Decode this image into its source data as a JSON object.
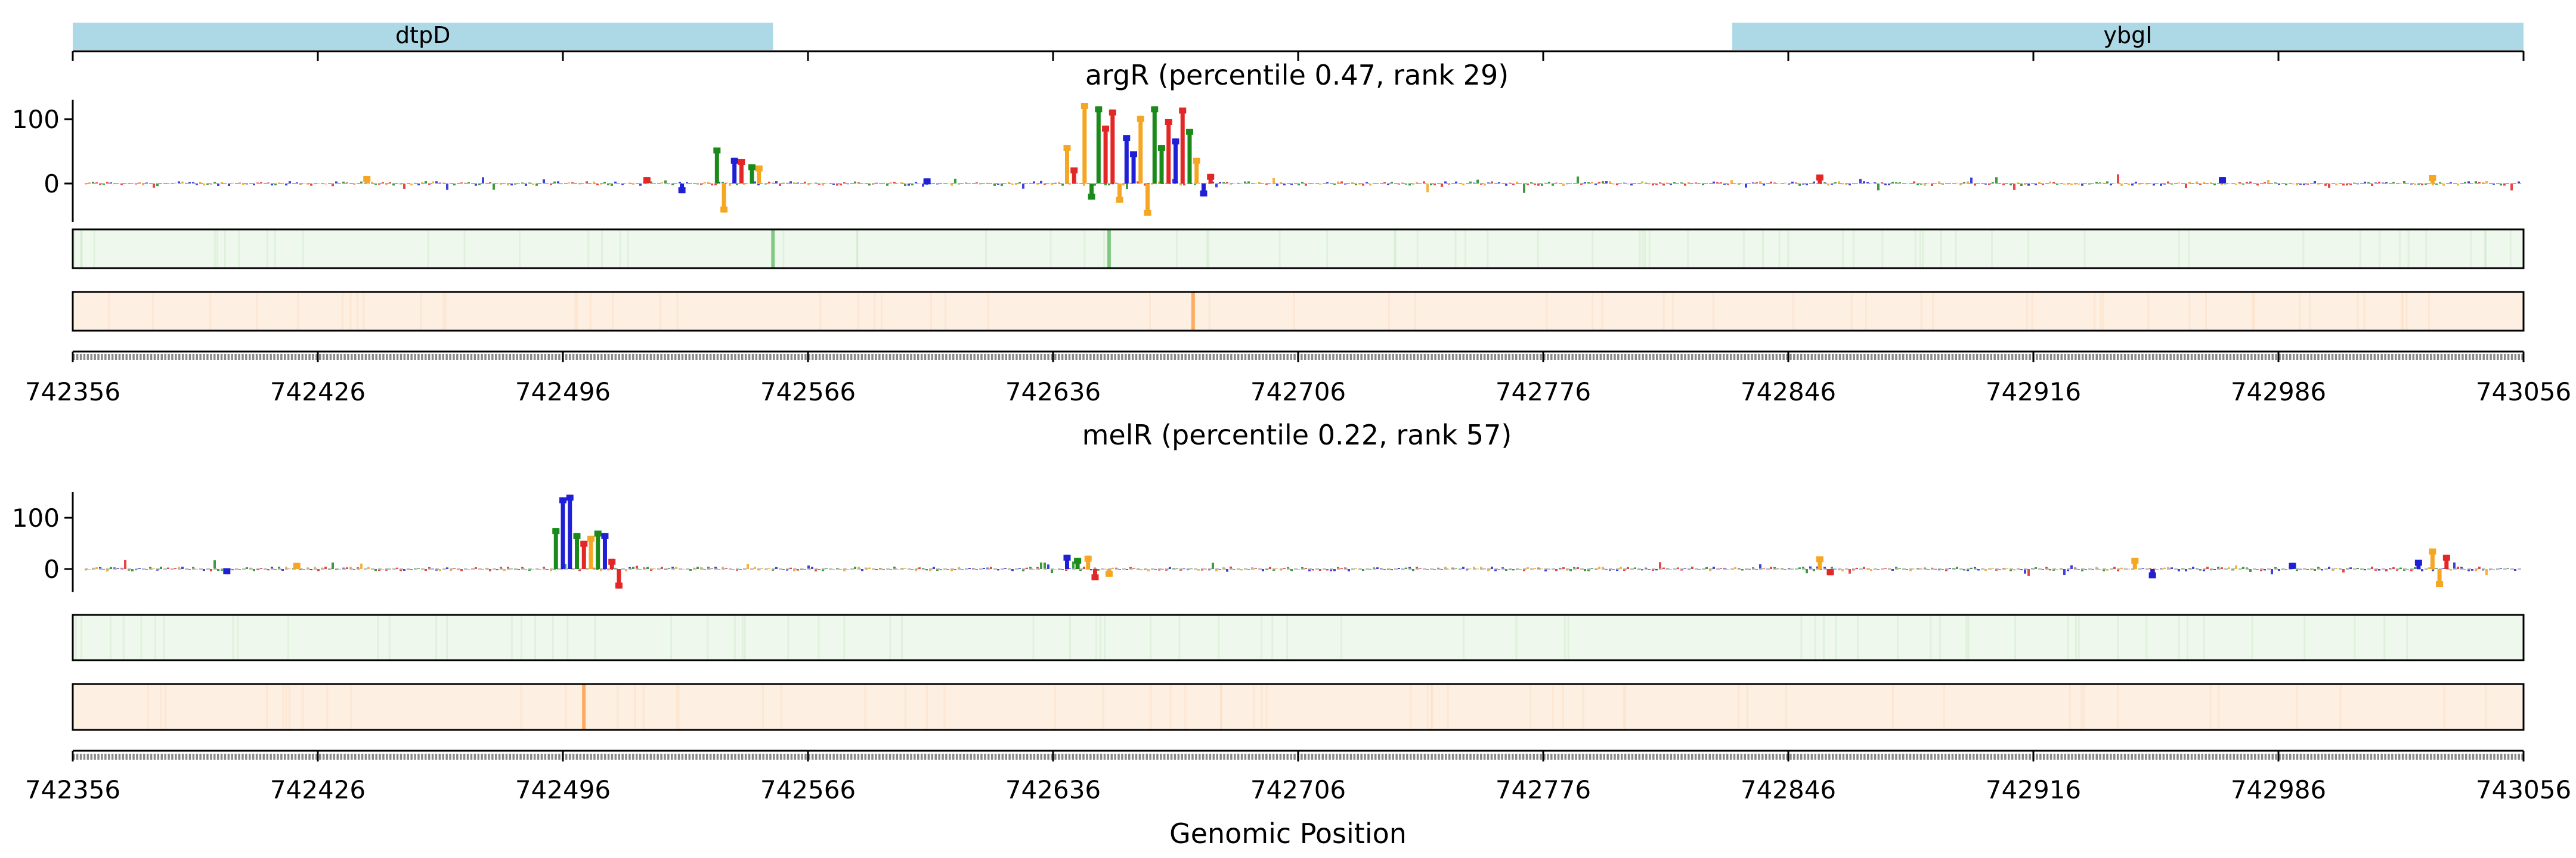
{
  "chart_data": {
    "type": "line",
    "xlabel": "Genomic Position",
    "x_range": [
      742356,
      743056
    ],
    "x_ticks": [
      742356,
      742426,
      742496,
      742566,
      742636,
      742706,
      742776,
      742846,
      742916,
      742986,
      743056
    ],
    "x_tick_labels": [
      "742356",
      "742426",
      "742496",
      "742566",
      "742636",
      "742706",
      "742776",
      "742846",
      "742916",
      "742986",
      "743056"
    ],
    "genes": [
      {
        "name": "dtpD",
        "start": 742356,
        "end": 742556
      },
      {
        "name": "ybgI",
        "start": 742830,
        "end": 743056
      }
    ],
    "base_colors": {
      "A": "#1a8a1a",
      "C": "#1f1fd6",
      "G": "#f5a623",
      "T": "#e32626"
    },
    "track_colors": {
      "conservation": "#2ca02c",
      "coverage": "#ff7f0e",
      "gene": "#add8e6"
    },
    "panels": [
      {
        "title": "argR (percentile 0.47, rank 29)",
        "ylim": [
          -60,
          130
        ],
        "y_ticks": [
          0,
          100
        ],
        "y_tick_labels": [
          "0",
          "100"
        ],
        "peaks": [
          {
            "x": 742540,
            "value": 56,
            "base": "A"
          },
          {
            "x": 742542,
            "value": -45,
            "base": "G"
          },
          {
            "x": 742545,
            "value": 40,
            "base": "C"
          },
          {
            "x": 742547,
            "value": 38,
            "base": "T"
          },
          {
            "x": 742550,
            "value": 30,
            "base": "A"
          },
          {
            "x": 742552,
            "value": 28,
            "base": "G"
          },
          {
            "x": 742530,
            "value": -15,
            "base": "C"
          },
          {
            "x": 742520,
            "value": 10,
            "base": "T"
          },
          {
            "x": 742640,
            "value": 60,
            "base": "G"
          },
          {
            "x": 742642,
            "value": 25,
            "base": "T"
          },
          {
            "x": 742645,
            "value": 125,
            "base": "G"
          },
          {
            "x": 742647,
            "value": -25,
            "base": "A"
          },
          {
            "x": 742649,
            "value": 120,
            "base": "A"
          },
          {
            "x": 742651,
            "value": 90,
            "base": "T"
          },
          {
            "x": 742653,
            "value": 115,
            "base": "T"
          },
          {
            "x": 742655,
            "value": -30,
            "base": "G"
          },
          {
            "x": 742657,
            "value": 75,
            "base": "C"
          },
          {
            "x": 742659,
            "value": 50,
            "base": "C"
          },
          {
            "x": 742661,
            "value": 105,
            "base": "G"
          },
          {
            "x": 742663,
            "value": -50,
            "base": "G"
          },
          {
            "x": 742665,
            "value": 120,
            "base": "A"
          },
          {
            "x": 742667,
            "value": 60,
            "base": "A"
          },
          {
            "x": 742669,
            "value": 100,
            "base": "T"
          },
          {
            "x": 742671,
            "value": 70,
            "base": "C"
          },
          {
            "x": 742673,
            "value": 118,
            "base": "T"
          },
          {
            "x": 742675,
            "value": 85,
            "base": "A"
          },
          {
            "x": 742677,
            "value": 40,
            "base": "G"
          },
          {
            "x": 742679,
            "value": -20,
            "base": "C"
          },
          {
            "x": 742681,
            "value": 15,
            "base": "T"
          },
          {
            "x": 742600,
            "value": 8,
            "base": "C"
          },
          {
            "x": 742440,
            "value": 12,
            "base": "G"
          },
          {
            "x": 742855,
            "value": 14,
            "base": "T"
          },
          {
            "x": 742970,
            "value": 10,
            "base": "C"
          },
          {
            "x": 743030,
            "value": 13,
            "base": "G"
          }
        ],
        "conservation_highlights": [
          742556,
          742652
        ],
        "coverage_highlights": [
          742676
        ]
      },
      {
        "title": "melR (percentile 0.22, rank 57)",
        "ylim": [
          -45,
          150
        ],
        "y_ticks": [
          0,
          100
        ],
        "y_tick_labels": [
          "0",
          "100"
        ],
        "peaks": [
          {
            "x": 742494,
            "value": 80,
            "base": "A"
          },
          {
            "x": 742496,
            "value": 140,
            "base": "C"
          },
          {
            "x": 742498,
            "value": 145,
            "base": "C"
          },
          {
            "x": 742500,
            "value": 70,
            "base": "A"
          },
          {
            "x": 742502,
            "value": 55,
            "base": "T"
          },
          {
            "x": 742504,
            "value": 65,
            "base": "G"
          },
          {
            "x": 742506,
            "value": 75,
            "base": "A"
          },
          {
            "x": 742508,
            "value": 70,
            "base": "C"
          },
          {
            "x": 742510,
            "value": 20,
            "base": "T"
          },
          {
            "x": 742512,
            "value": -38,
            "base": "T"
          },
          {
            "x": 742420,
            "value": 12,
            "base": "G"
          },
          {
            "x": 742400,
            "value": -10,
            "base": "C"
          },
          {
            "x": 742640,
            "value": 28,
            "base": "C"
          },
          {
            "x": 742643,
            "value": 22,
            "base": "A"
          },
          {
            "x": 742646,
            "value": 26,
            "base": "G"
          },
          {
            "x": 742648,
            "value": -22,
            "base": "T"
          },
          {
            "x": 742652,
            "value": -15,
            "base": "G"
          },
          {
            "x": 742855,
            "value": 25,
            "base": "G"
          },
          {
            "x": 742858,
            "value": -12,
            "base": "T"
          },
          {
            "x": 742945,
            "value": 22,
            "base": "G"
          },
          {
            "x": 742950,
            "value": -18,
            "base": "C"
          },
          {
            "x": 742990,
            "value": 12,
            "base": "C"
          },
          {
            "x": 743030,
            "value": 40,
            "base": "G"
          },
          {
            "x": 743032,
            "value": -35,
            "base": "G"
          },
          {
            "x": 743034,
            "value": 28,
            "base": "T"
          },
          {
            "x": 743026,
            "value": 18,
            "base": "C"
          }
        ],
        "conservation_highlights": [],
        "coverage_highlights": [
          742502
        ]
      }
    ]
  }
}
